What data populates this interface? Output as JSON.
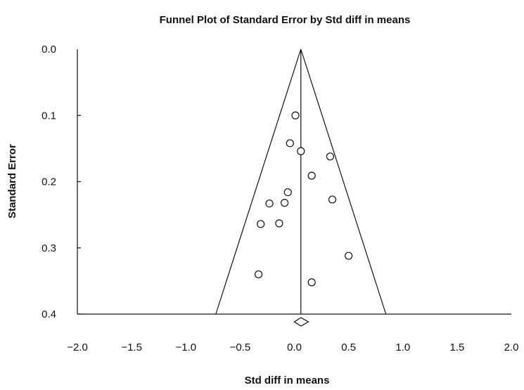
{
  "chart_data": {
    "type": "scatter",
    "title": "Funnel Plot of Standard Error by Std diff in means",
    "xlabel": "Std diff in means",
    "ylabel": "Standard Error",
    "xlim": [
      -2.0,
      2.0
    ],
    "ylim": [
      0.0,
      0.4
    ],
    "y_inverted": true,
    "x_ticks": [
      "−2.0",
      "−1.5",
      "−1.0",
      "−0.5",
      "0.0",
      "0.5",
      "1.0",
      "1.5",
      "2.0"
    ],
    "y_ticks": [
      "0.0",
      "0.1",
      "0.2",
      "0.3",
      "0.4"
    ],
    "pooled_effect": 0.06,
    "points": [
      {
        "x": 0.01,
        "y": 0.1
      },
      {
        "x": -0.04,
        "y": 0.142
      },
      {
        "x": 0.06,
        "y": 0.154
      },
      {
        "x": 0.33,
        "y": 0.162
      },
      {
        "x": 0.16,
        "y": 0.191
      },
      {
        "x": -0.06,
        "y": 0.216
      },
      {
        "x": -0.23,
        "y": 0.233
      },
      {
        "x": -0.09,
        "y": 0.232
      },
      {
        "x": 0.35,
        "y": 0.227
      },
      {
        "x": -0.31,
        "y": 0.264
      },
      {
        "x": -0.14,
        "y": 0.263
      },
      {
        "x": 0.5,
        "y": 0.312
      },
      {
        "x": -0.33,
        "y": 0.34
      },
      {
        "x": 0.16,
        "y": 0.352
      }
    ],
    "summary_diamond": {
      "center": 0.06,
      "ci": [
        0.0,
        0.13
      ]
    }
  }
}
